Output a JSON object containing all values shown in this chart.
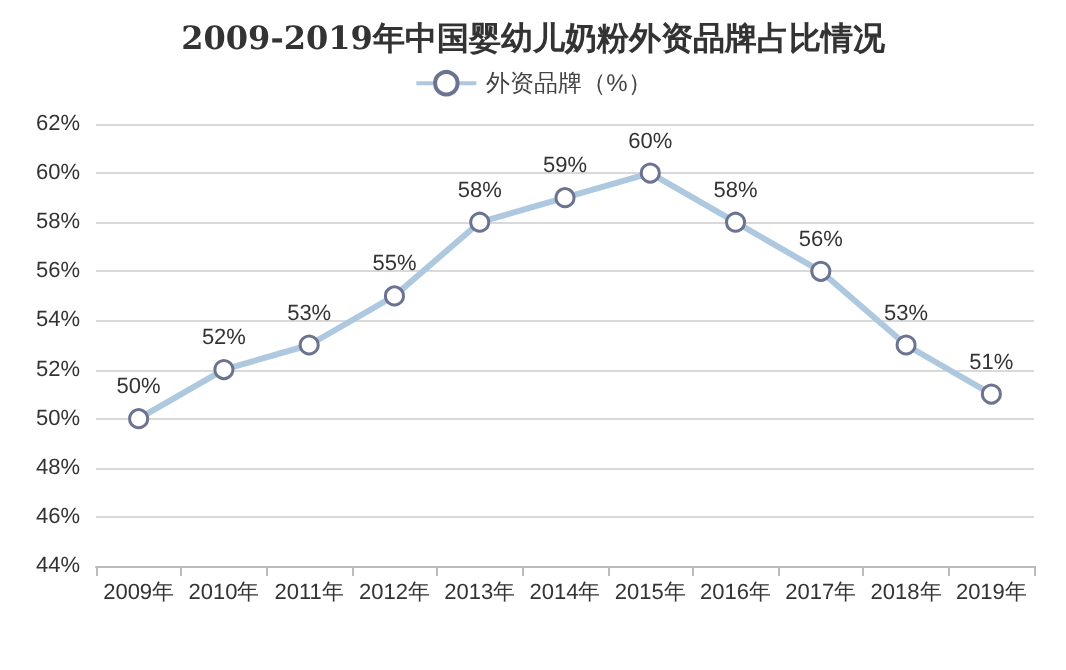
{
  "chart_data": {
    "type": "line",
    "title": "2009-2019年中国婴幼儿奶粉外资品牌占比情况",
    "categories": [
      "2009年",
      "2010年",
      "2011年",
      "2012年",
      "2013年",
      "2014年",
      "2015年",
      "2016年",
      "2017年",
      "2018年",
      "2019年"
    ],
    "series": [
      {
        "name": "外资品牌（%）",
        "color": "#adc8df",
        "values": [
          50,
          52,
          53,
          55,
          58,
          59,
          60,
          58,
          56,
          53,
          51
        ],
        "value_labels": [
          "50%",
          "52%",
          "53%",
          "55%",
          "58%",
          "59%",
          "60%",
          "58%",
          "56%",
          "53%",
          "51%"
        ]
      }
    ],
    "ylim": [
      44,
      62
    ],
    "yticks": [
      {
        "value": 44,
        "label": "44%"
      },
      {
        "value": 46,
        "label": "46%"
      },
      {
        "value": 48,
        "label": "48%"
      },
      {
        "value": 50,
        "label": "50%"
      },
      {
        "value": 52,
        "label": "52%"
      },
      {
        "value": 54,
        "label": "54%"
      },
      {
        "value": 56,
        "label": "56%"
      },
      {
        "value": 58,
        "label": "58%"
      },
      {
        "value": 60,
        "label": "60%"
      },
      {
        "value": 62,
        "label": "62%"
      }
    ],
    "grid": "y",
    "legend": "top",
    "marker": "circle",
    "line_style": "solid"
  }
}
